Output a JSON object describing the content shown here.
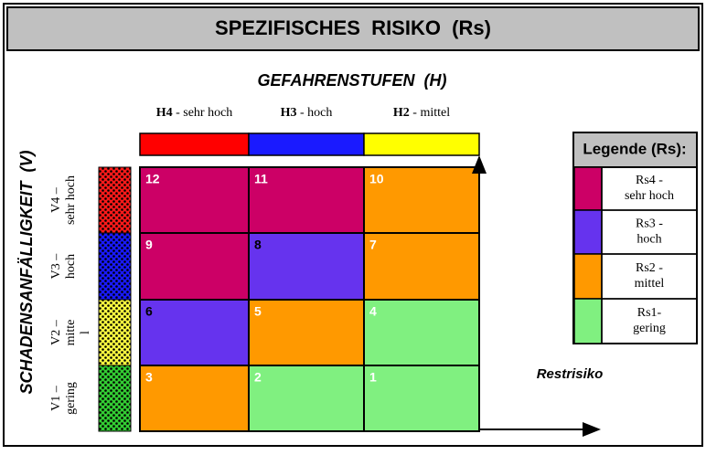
{
  "header": {
    "title": "SPEZIFISCHES  RISIKO  (Rs)"
  },
  "axis_h": {
    "label": "GEFAHRENSTUFEN  (H)",
    "columns": [
      {
        "code": "H4",
        "text": "- sehr hoch",
        "color": "#ff0000"
      },
      {
        "code": "H3",
        "text": "- hoch",
        "color": "#1a1aff"
      },
      {
        "code": "H2",
        "text": "- mittel",
        "color": "#ffff00"
      }
    ]
  },
  "axis_v": {
    "label": "SCHADENSANFÄLLIGKEIT  (V)",
    "rows": [
      {
        "lines": [
          "V4 –",
          "sehr hoch"
        ],
        "color": "#ff1a1a"
      },
      {
        "lines": [
          "V3 –",
          "hoch"
        ],
        "color": "#1a1aff"
      },
      {
        "lines": [
          "V2 –",
          "mitte",
          "l"
        ],
        "color": "#ffff40"
      },
      {
        "lines": [
          "V1 –",
          "gering"
        ],
        "color": "#33cc33"
      }
    ]
  },
  "matrix": {
    "rows": [
      [
        {
          "value": "12",
          "color": "#cc0066"
        },
        {
          "value": "11",
          "color": "#cc0066"
        },
        {
          "value": "10",
          "color": "#ff9900"
        }
      ],
      [
        {
          "value": "9",
          "color": "#cc0066"
        },
        {
          "value": "8",
          "color": "#6633ee"
        },
        {
          "value": "7",
          "color": "#ff9900"
        }
      ],
      [
        {
          "value": "6",
          "color": "#6633ee"
        },
        {
          "value": "5",
          "color": "#ff9900"
        },
        {
          "value": "4",
          "color": "#80f080"
        }
      ],
      [
        {
          "value": "3",
          "color": "#ff9900"
        },
        {
          "value": "2",
          "color": "#80f080"
        },
        {
          "value": "1",
          "color": "#80f080"
        }
      ]
    ]
  },
  "residual": {
    "label": "Restrisiko"
  },
  "legend": {
    "title": "Legende (Rs):",
    "entries": [
      {
        "lines": [
          "Rs4 -",
          "sehr hoch"
        ],
        "color": "#cc0066"
      },
      {
        "lines": [
          "Rs3 -",
          "hoch"
        ],
        "color": "#6633ee"
      },
      {
        "lines": [
          "Rs2 -",
          "mittel"
        ],
        "color": "#ff9900"
      },
      {
        "lines": [
          "Rs1-",
          "gering"
        ],
        "color": "#80f080"
      }
    ]
  }
}
